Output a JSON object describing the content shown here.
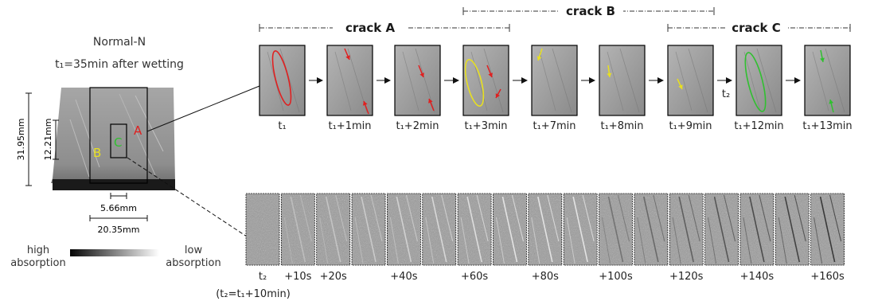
{
  "sample": {
    "title": "Normal-N",
    "subtitle": "t₁=35min after wetting",
    "dims": {
      "height_outer": "31.95mm",
      "height_inner": "12.21mm",
      "width_small": "5.66mm",
      "width_outer": "20.35mm"
    },
    "labels": {
      "a": "A",
      "b": "B",
      "c": "C"
    }
  },
  "legend": {
    "left": [
      "high",
      "absorption"
    ],
    "right": [
      "low",
      "absorption"
    ]
  },
  "cracks": [
    {
      "label": "crack A"
    },
    {
      "label": "crack B"
    },
    {
      "label": "crack C"
    }
  ],
  "top_frames": [
    "t₁",
    "t₁+1min",
    "t₁+2min",
    "t₁+3min",
    "t₁+7min",
    "t₁+8min",
    "t₁+9min",
    "t₁+12min",
    "t₁+13min"
  ],
  "t2_marker": "t₂",
  "bottom_frames": [
    "t₂",
    "+10s",
    "+20s",
    "",
    "+40s",
    "",
    "+60s",
    "",
    "+80s",
    "",
    "+100s",
    "",
    "+120s",
    "",
    "+140s",
    "",
    "+160s",
    ""
  ],
  "footnote": "(t₂=t₁+10min)",
  "colors": {
    "crack_a": "#e02020",
    "crack_b": "#e8e020",
    "crack_c": "#30c030"
  }
}
